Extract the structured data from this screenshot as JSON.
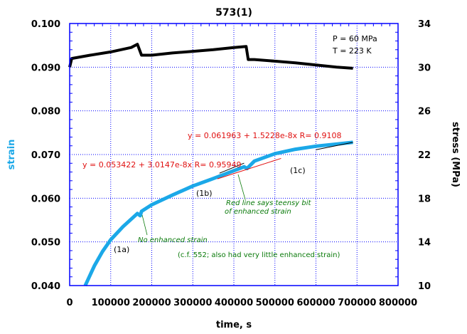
{
  "chart_data": {
    "type": "line",
    "title": "573(1)",
    "xlabel": "time, s",
    "ylabel": "strain",
    "y2label": "stress (MPa)",
    "xlim": [
      0,
      800000
    ],
    "ylim": [
      0.04,
      0.1
    ],
    "y2lim": [
      10,
      34
    ],
    "xticks": [
      "0",
      "100000",
      "200000",
      "300000",
      "400000",
      "500000",
      "600000",
      "700000",
      "800000"
    ],
    "yticks": [
      "0.040",
      "0.050",
      "0.060",
      "0.070",
      "0.080",
      "0.090",
      "0.100"
    ],
    "y2ticks": [
      "10",
      "14",
      "18",
      "22",
      "26",
      "30",
      "34"
    ],
    "grid": true,
    "series": [
      {
        "name": "strain",
        "axis": "left",
        "color": "#1ba8e8",
        "x": [
          38000,
          60000,
          80000,
          100000,
          130000,
          165000,
          172000,
          175000,
          200000,
          250000,
          300000,
          350000,
          400000,
          425000,
          432000,
          450000,
          500000,
          550000,
          600000,
          650000,
          690000
        ],
        "y": [
          0.04,
          0.0445,
          0.0478,
          0.0505,
          0.0535,
          0.0565,
          0.056,
          0.057,
          0.0585,
          0.0607,
          0.0628,
          0.0645,
          0.0663,
          0.0672,
          0.0668,
          0.0685,
          0.0702,
          0.0712,
          0.0719,
          0.0724,
          0.0728
        ]
      },
      {
        "name": "stress",
        "axis": "right",
        "color": "#000000",
        "x": [
          0,
          5000,
          50000,
          100000,
          150000,
          165000,
          175000,
          200000,
          250000,
          300000,
          350000,
          400000,
          430000,
          435000,
          450000,
          500000,
          550000,
          600000,
          650000,
          690000
        ],
        "y": [
          30.0,
          30.8,
          31.1,
          31.4,
          31.8,
          32.1,
          31.1,
          31.1,
          31.3,
          31.45,
          31.6,
          31.8,
          31.9,
          30.7,
          30.7,
          30.55,
          30.4,
          30.2,
          30.0,
          29.9
        ]
      }
    ],
    "fits": [
      {
        "label": "y = 0.053422 + 3.0147e-8x   R= 0.95949",
        "x": [
          360000,
          520000
        ]
      },
      {
        "label": "y = 0.061963 + 1.5228e-8x   R= 0.9108",
        "x": [
          600000,
          690000
        ]
      }
    ],
    "annotations": {
      "params_p": "P = 60 MPa",
      "params_t": "T = 223 K",
      "seg_1a": "(1a)",
      "seg_1b": "(1b)",
      "seg_1c": "(1c)",
      "no_enh": "No enhanced strain",
      "red_line_1": "Red line says teensy bit",
      "red_line_2": "of enhanced strain",
      "cf": "(c.f. 552; also had very little enhanced strain)"
    }
  }
}
